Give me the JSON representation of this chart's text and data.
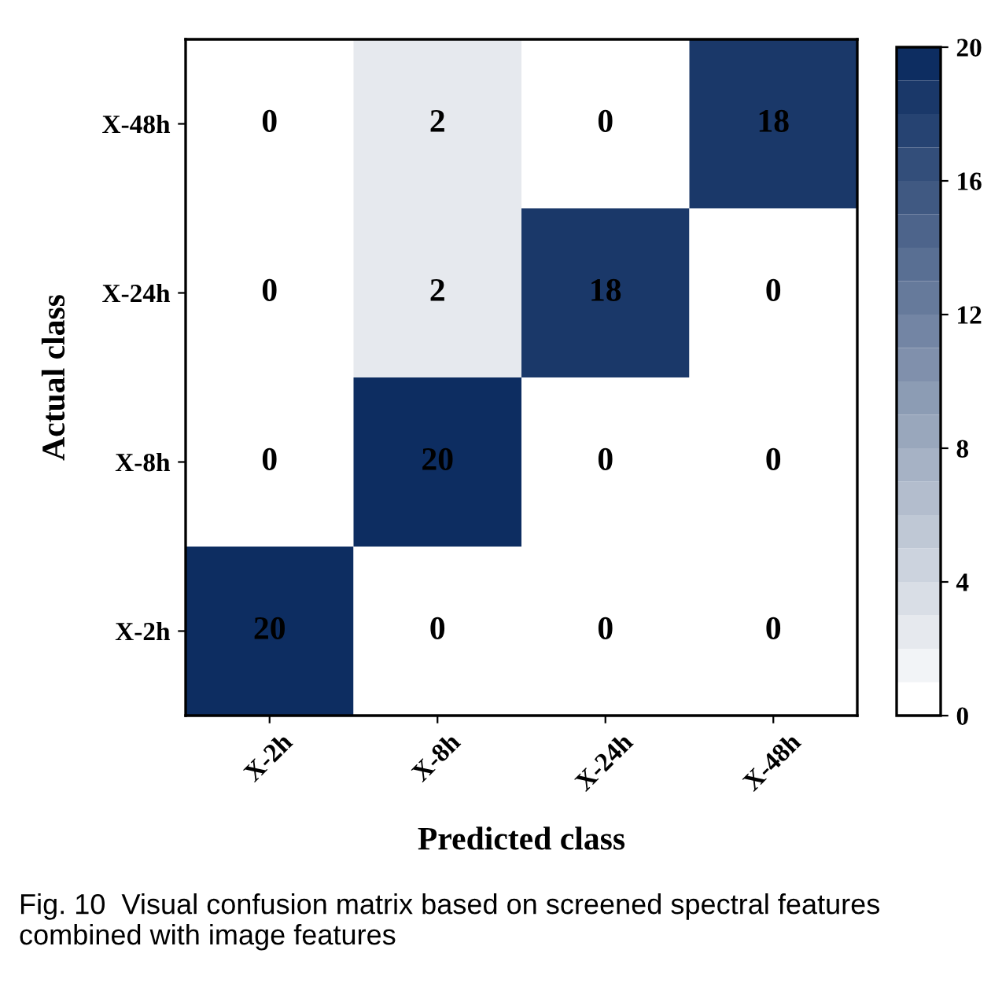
{
  "chart_data": {
    "type": "heatmap",
    "categories": [
      "X-2h",
      "X-8h",
      "X-24h",
      "X-48h"
    ],
    "y_categories": [
      "X-48h",
      "X-24h",
      "X-8h",
      "X-2h"
    ],
    "cells": [
      [
        0,
        2,
        0,
        18
      ],
      [
        0,
        2,
        18,
        0
      ],
      [
        0,
        20,
        0,
        0
      ],
      [
        20,
        0,
        0,
        0
      ]
    ],
    "data_labels": true,
    "clim": [
      0,
      20
    ],
    "cticks": [
      0,
      4,
      8,
      12,
      16,
      20
    ],
    "xlabel": "Predicted class",
    "ylabel": "Actual class",
    "annotations": [
      "Fig. 10  Visual confusion matrix based on screened spectral features combined with image features"
    ]
  }
}
